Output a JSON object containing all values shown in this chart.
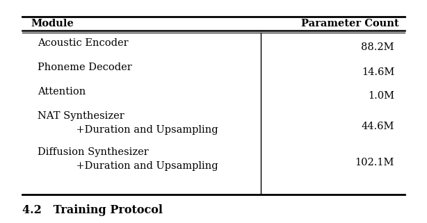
{
  "title_col1": "Module",
  "title_col2": "Parameter Count",
  "row_labels": [
    "Acoustic Encoder",
    "Phoneme Decoder",
    "Attention",
    "NAT Synthesizer\n            +Duration and Upsampling",
    "Diffusion Synthesizer\n            +Duration and Upsampling"
  ],
  "row_params": [
    "88.2M",
    "14.6M",
    "1.0M",
    "44.6M",
    "102.1M"
  ],
  "footer": "4.2   Training Protocol",
  "bg_color": "#ffffff",
  "text_color": "#000000",
  "font_size": 10.5,
  "header_font_size": 10.5,
  "footer_font_size": 11.5
}
